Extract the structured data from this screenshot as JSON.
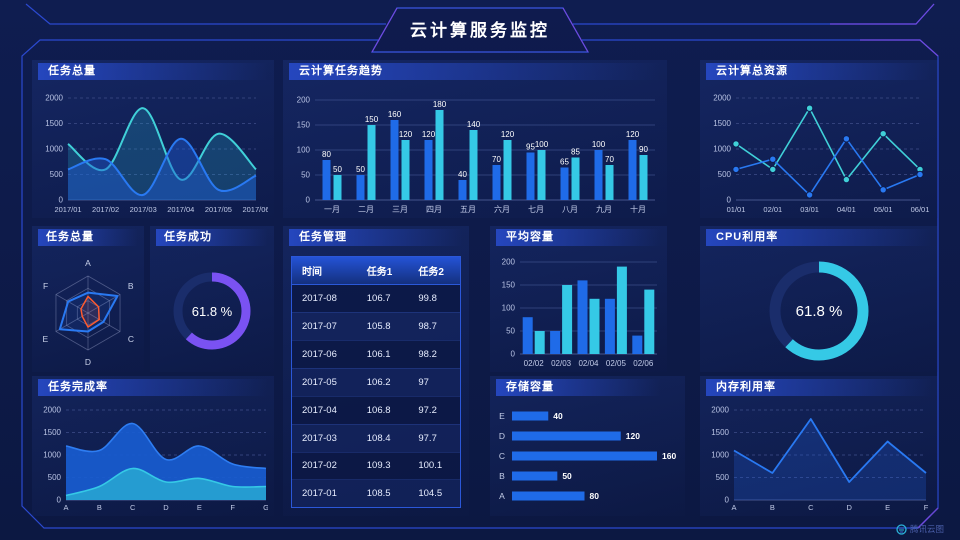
{
  "header": {
    "title": "云计算服务监控"
  },
  "watermark": {
    "label": "腾讯云图"
  },
  "colors": {
    "background": "#0e1c4e",
    "accent_blue": "#1f6be8",
    "accent_cyan": "#35c9e6",
    "accent_teal": "#40d0d8",
    "accent_purple": "#7a52f2",
    "accent_orange": "#ff5a2e",
    "frame_line": "#2b49cf",
    "frame_accent": "#6f49dd"
  },
  "panels": {
    "tasks_total": {
      "title": "任务总量"
    },
    "task_trend": {
      "title": "云计算任务趋势"
    },
    "cloud_resources": {
      "title": "云计算总资源"
    },
    "tasks_radar": {
      "title": "任务总量"
    },
    "task_success": {
      "title": "任务成功"
    },
    "task_manage": {
      "title": "任务管理"
    },
    "avg_capacity": {
      "title": "平均容量"
    },
    "cpu_usage": {
      "title": "CPU利用率"
    },
    "task_completion": {
      "title": "任务完成率"
    },
    "storage": {
      "title": "存储容量"
    },
    "memory": {
      "title": "内存利用率"
    }
  },
  "chart_data": [
    {
      "id": "tasks_total",
      "type": "line",
      "smooth": true,
      "title": "任务总量",
      "x": [
        "2017/01",
        "2017/02",
        "2017/03",
        "2017/04",
        "2017/05",
        "2017/06"
      ],
      "ylim": [
        0,
        2000
      ],
      "yticks": [
        0,
        500,
        1000,
        1500,
        2000
      ],
      "grid": "dashed",
      "series": [
        {
          "name": "cyan",
          "color": "#40d0d8",
          "fill": "rgba(40,170,205,0.25)",
          "values": [
            1100,
            600,
            1800,
            400,
            1300,
            600
          ]
        },
        {
          "name": "blue",
          "color": "#2979f2",
          "fill": "rgba(31,90,210,0.45)",
          "values": [
            600,
            800,
            100,
            1200,
            200,
            480
          ]
        }
      ]
    },
    {
      "id": "task_trend",
      "type": "bar",
      "labels": true,
      "title": "云计算任务趋势",
      "categories": [
        "一月",
        "二月",
        "三月",
        "四月",
        "五月",
        "六月",
        "七月",
        "八月",
        "九月",
        "十月"
      ],
      "ylim": [
        0,
        200
      ],
      "yticks": [
        0,
        50,
        100,
        150,
        200
      ],
      "grid": "solid",
      "series": [
        {
          "name": "blue",
          "color": "#1f6be8",
          "values": [
            80,
            50,
            160,
            120,
            40,
            70,
            95,
            65,
            100,
            120
          ]
        },
        {
          "name": "cyan",
          "color": "#35c9e6",
          "values": [
            50,
            150,
            120,
            180,
            140,
            120,
            100,
            85,
            70,
            90
          ]
        }
      ]
    },
    {
      "id": "cloud_resources",
      "type": "line",
      "markers": true,
      "title": "云计算总资源",
      "x": [
        "01/01",
        "02/01",
        "03/01",
        "04/01",
        "05/01",
        "06/01"
      ],
      "ylim": [
        0,
        2000
      ],
      "yticks": [
        0,
        500,
        1000,
        1500,
        2000
      ],
      "grid": "dashed",
      "series": [
        {
          "name": "cyan",
          "color": "#40d0d8",
          "values": [
            1100,
            600,
            1800,
            400,
            1300,
            600
          ]
        },
        {
          "name": "blue",
          "color": "#2979f2",
          "values": [
            600,
            800,
            100,
            1200,
            200,
            500
          ]
        }
      ]
    },
    {
      "id": "tasks_radar",
      "type": "radar",
      "title": "任务总量",
      "axes": [
        "A",
        "B",
        "C",
        "D",
        "E",
        "F"
      ],
      "max": 100,
      "series": [
        {
          "name": "blue",
          "color": "#2979f2",
          "fill": "rgba(41,121,242,0.10)",
          "values": [
            55,
            92,
            48,
            50,
            88,
            62
          ]
        },
        {
          "name": "orange",
          "color": "#ff5a2e",
          "fill": "rgba(255,90,46,0.12)",
          "values": [
            45,
            33,
            35,
            38,
            18,
            22
          ]
        }
      ]
    },
    {
      "id": "task_success",
      "type": "gauge",
      "title": "任务成功",
      "value": 61.8,
      "unit": "%",
      "color": "#7a52f2",
      "track": "#1a2d6b",
      "radius": 34,
      "thickness": 9
    },
    {
      "id": "task_manage",
      "type": "table",
      "title": "任务管理",
      "headers": [
        "时间",
        "任务1",
        "任务2"
      ],
      "rows": [
        [
          "2017-08",
          "106.7",
          "99.8"
        ],
        [
          "2017-07",
          "105.8",
          "98.7"
        ],
        [
          "2017-06",
          "106.1",
          "98.2"
        ],
        [
          "2017-05",
          "106.2",
          "97"
        ],
        [
          "2017-04",
          "106.8",
          "97.2"
        ],
        [
          "2017-03",
          "108.4",
          "97.7"
        ],
        [
          "2017-02",
          "109.3",
          "100.1"
        ],
        [
          "2017-01",
          "108.5",
          "104.5"
        ]
      ]
    },
    {
      "id": "avg_capacity",
      "type": "bar",
      "labels": false,
      "title": "平均容量",
      "categories": [
        "02/02",
        "02/03",
        "02/04",
        "02/05",
        "02/06"
      ],
      "ylim": [
        0,
        200
      ],
      "yticks": [
        0,
        50,
        100,
        150,
        200
      ],
      "grid": "solid",
      "series": [
        {
          "name": "blue",
          "color": "#1f6be8",
          "values": [
            80,
            50,
            160,
            120,
            40
          ]
        },
        {
          "name": "cyan",
          "color": "#35c9e6",
          "values": [
            50,
            150,
            120,
            190,
            140
          ]
        }
      ]
    },
    {
      "id": "cpu_usage",
      "type": "gauge",
      "title": "CPU利用率",
      "value": 61.8,
      "unit": "%",
      "color": "#35c9e6",
      "track": "#1a2d6b",
      "radius": 44,
      "thickness": 11
    },
    {
      "id": "task_completion",
      "type": "line",
      "smooth": true,
      "title": "任务完成率",
      "x": [
        "A",
        "B",
        "C",
        "D",
        "E",
        "F",
        "G"
      ],
      "ylim": [
        0,
        2000
      ],
      "yticks": [
        0,
        500,
        1000,
        1500,
        2000
      ],
      "grid": "dashed",
      "series": [
        {
          "name": "blue",
          "color": "#2e7df2",
          "fill": "rgba(24,92,208,0.92)",
          "values": [
            1200,
            1100,
            1700,
            900,
            1200,
            800,
            700
          ]
        },
        {
          "name": "cyan",
          "color": "#35c9e6",
          "fill": "rgba(38,160,210,0.95)",
          "values": [
            100,
            300,
            700,
            400,
            480,
            300,
            300
          ]
        }
      ]
    },
    {
      "id": "storage",
      "type": "hbar",
      "title": "存储容量",
      "color": "#1f6be8",
      "xmax": 160,
      "rows": [
        {
          "label": "E",
          "value": 40
        },
        {
          "label": "D",
          "value": 120
        },
        {
          "label": "C",
          "value": 160
        },
        {
          "label": "B",
          "value": 50
        },
        {
          "label": "A",
          "value": 80
        }
      ]
    },
    {
      "id": "memory",
      "type": "line",
      "smooth": false,
      "title": "内存利用率",
      "x": [
        "A",
        "B",
        "C",
        "D",
        "E",
        "F"
      ],
      "ylim": [
        0,
        2000
      ],
      "yticks": [
        0,
        500,
        1000,
        1500,
        2000
      ],
      "grid": "dashed",
      "series": [
        {
          "name": "blue",
          "color": "#2979f2",
          "fill": "rgba(31,90,210,0.28)",
          "values": [
            1100,
            600,
            1800,
            400,
            1300,
            600
          ]
        }
      ]
    }
  ]
}
